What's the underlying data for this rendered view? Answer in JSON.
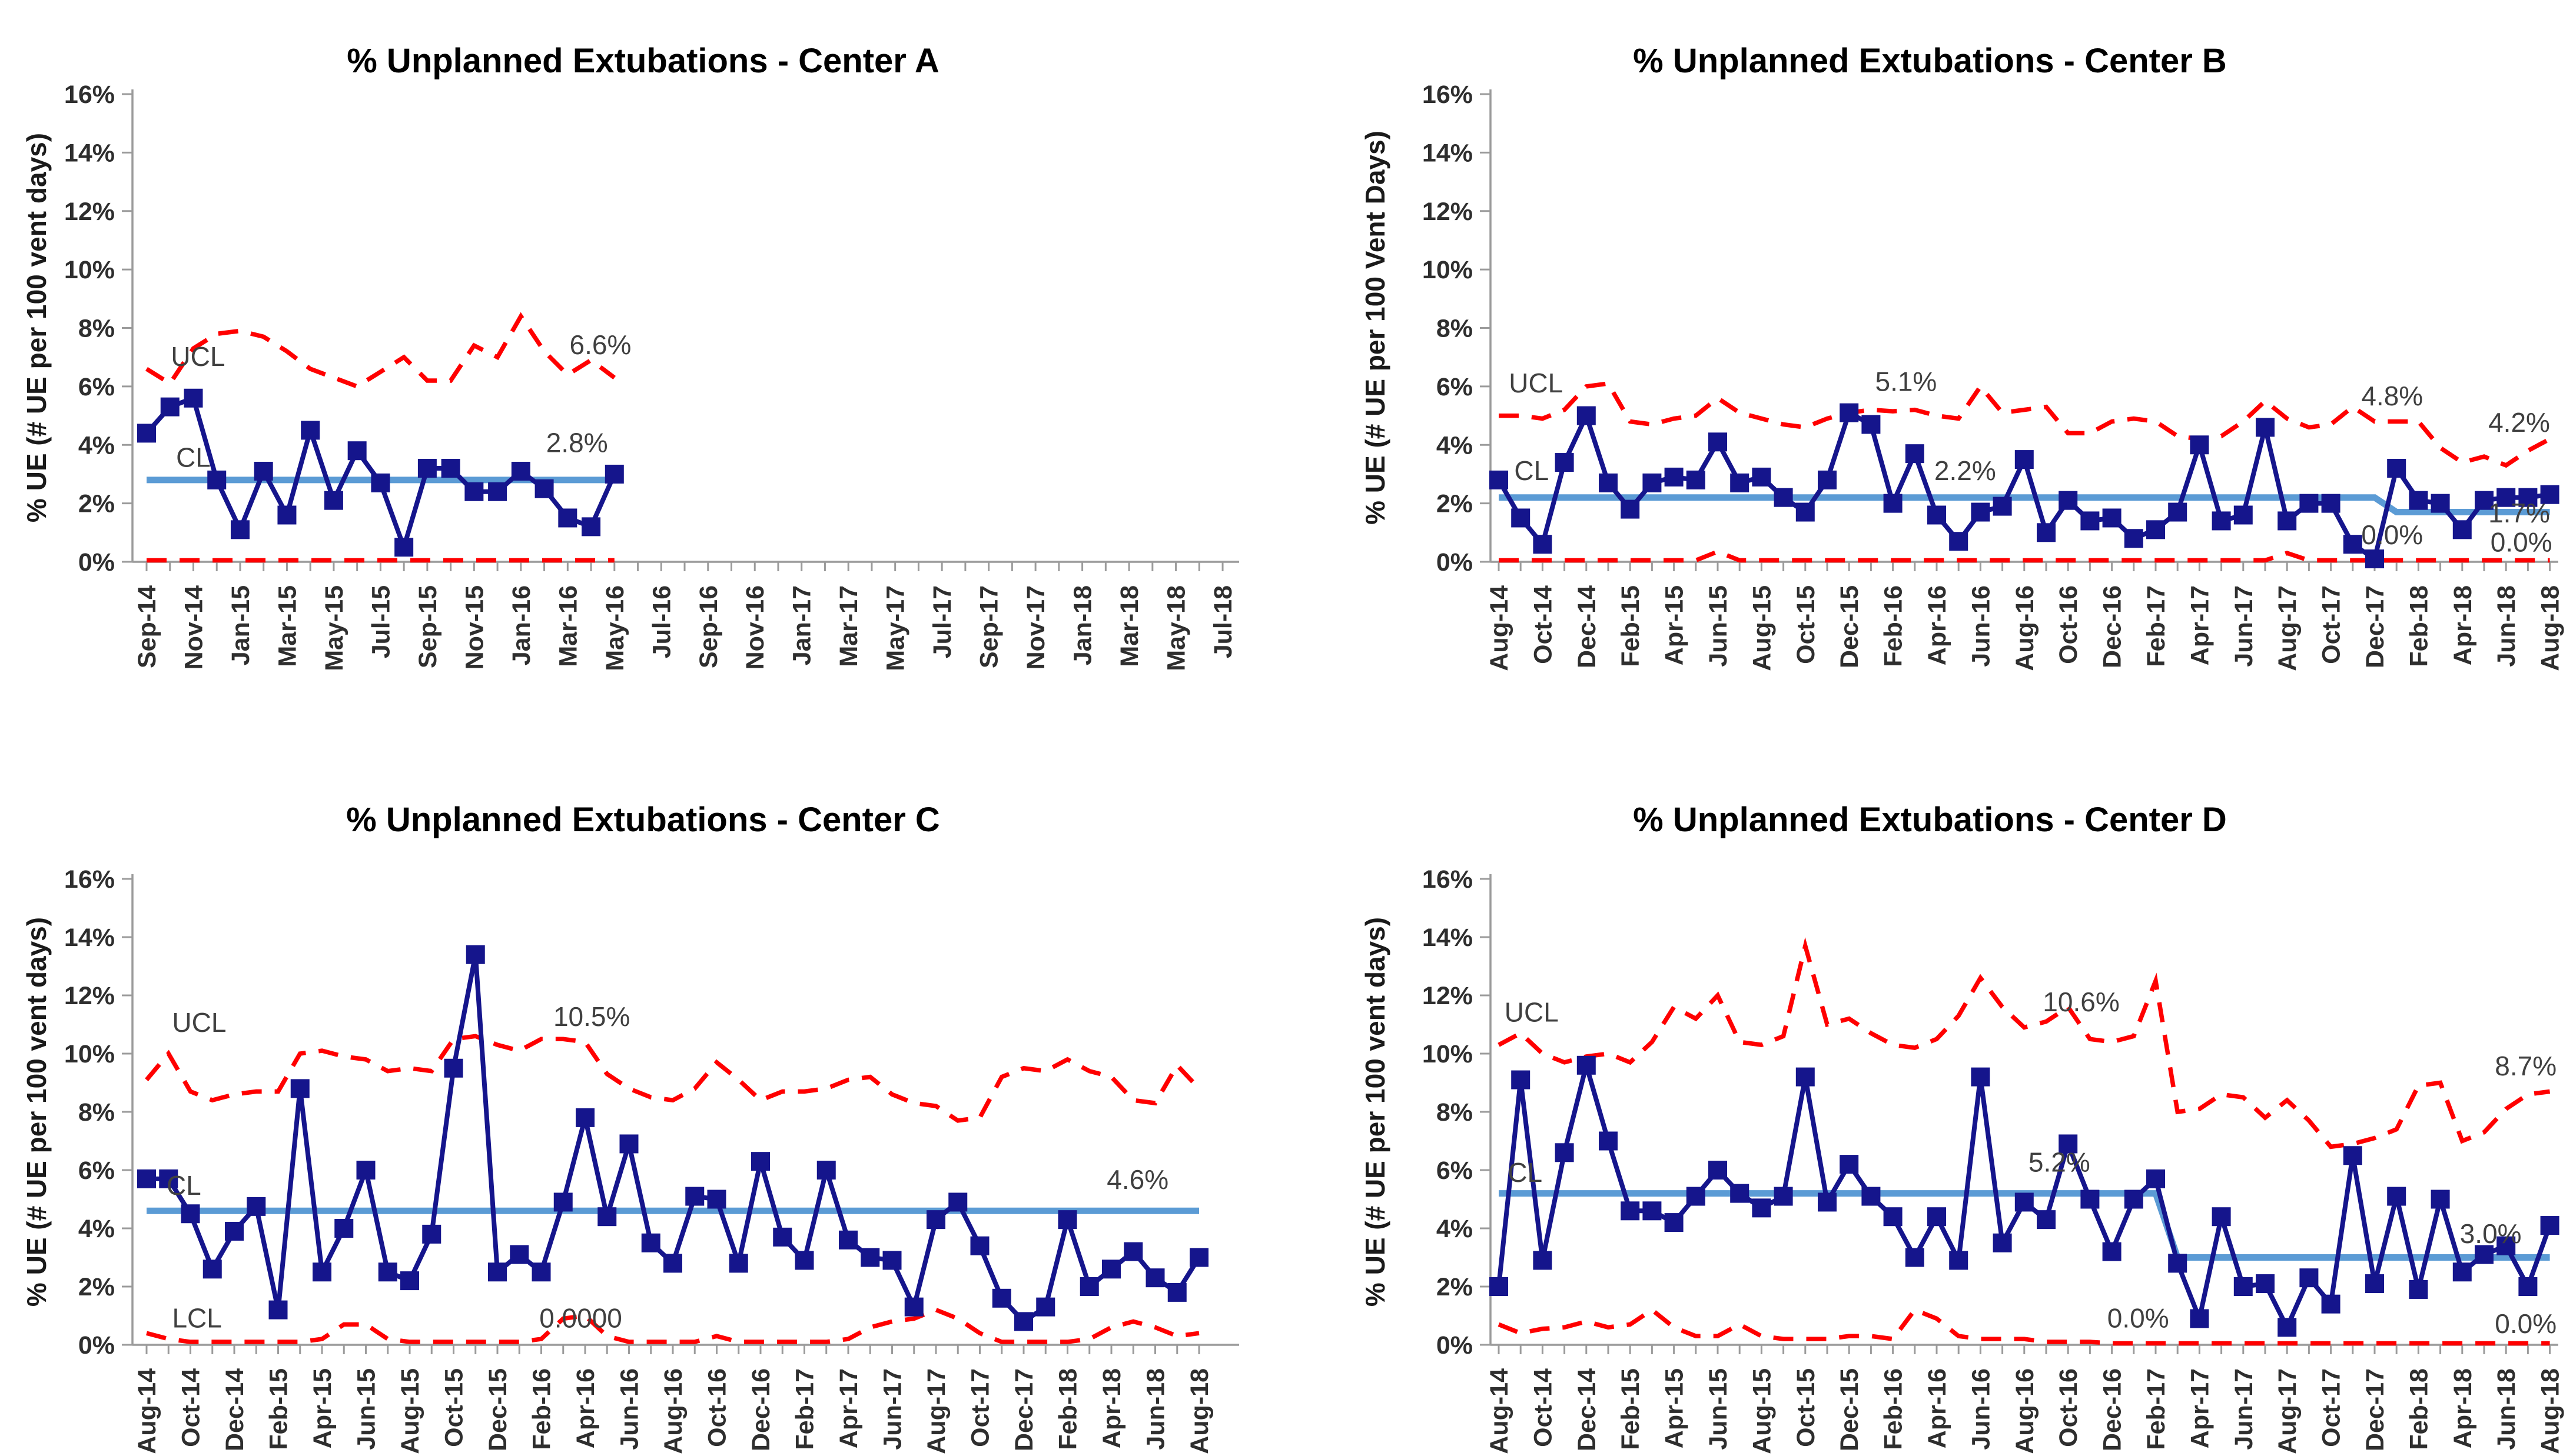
{
  "page": {
    "background": "#ffffff"
  },
  "colors": {
    "series": "#15158c",
    "center_line": "#5B9BD5",
    "control_limit": "#FF0000",
    "axis": "#9b9b9b",
    "tick_text": "#2e2e2e",
    "annotation_text": "#404040",
    "title_text": "#000000"
  },
  "chart_data": [
    {
      "id": "center-a",
      "type": "line",
      "title": "% Unplanned Extubations - Center A",
      "y_axis_label": "% UE (# UE per 100 vent days)",
      "ylim": [
        0,
        16
      ],
      "y_tick_labels": [
        "0%",
        "2%",
        "4%",
        "6%",
        "8%",
        "10%",
        "12%",
        "14%",
        "16%"
      ],
      "x_tick_labels": [
        "Sep-14",
        "Nov-14",
        "Jan-15",
        "Mar-15",
        "May-15",
        "Jul-15",
        "Sep-15",
        "Nov-15",
        "Jan-16",
        "Mar-16",
        "May-16",
        "Jul-16",
        "Sep-16",
        "Nov-16",
        "Jan-17",
        "Mar-17",
        "May-17",
        "Jul-17",
        "Sep-17",
        "Nov-17",
        "Jan-18",
        "Mar-18",
        "May-18",
        "Jul-18"
      ],
      "axis_months": 47,
      "values": [
        4.4,
        5.3,
        5.6,
        2.8,
        1.1,
        3.1,
        1.6,
        4.5,
        2.1,
        3.8,
        2.7,
        0.5,
        3.2,
        3.2,
        2.4,
        2.4,
        3.1,
        2.5,
        1.5,
        1.2,
        3.0
      ],
      "ucl": [
        6.6,
        6.1,
        7.3,
        7.8,
        7.9,
        7.7,
        7.2,
        6.6,
        6.3,
        6.0,
        6.5,
        7.0,
        6.2,
        6.2,
        7.4,
        7.0,
        8.4,
        7.2,
        6.4,
        6.9,
        6.3
      ],
      "lcl": [
        0.05,
        0.05,
        0.05,
        0.05,
        0.05,
        0.05,
        0.05,
        0.05,
        0.05,
        0.05,
        0.05,
        0.05,
        0.05,
        0.05,
        0.05,
        0.05,
        0.05,
        0.05,
        0.05,
        0.05,
        0.05
      ],
      "cl_segments": [
        {
          "start": 0,
          "end": 20,
          "value": 2.8
        }
      ],
      "annotations": [
        {
          "text": "UCL",
          "m": 2.2,
          "v": 6.7
        },
        {
          "text": "CL",
          "m": 2.0,
          "v": 3.25
        },
        {
          "text": "6.6%",
          "m": 19.4,
          "v": 7.1
        },
        {
          "text": "2.8%",
          "m": 18.4,
          "v": 3.75
        }
      ]
    },
    {
      "id": "center-b",
      "type": "line",
      "title": "% Unplanned Extubations - Center B",
      "y_axis_label": "% UE (# UE per 100 Vent Days)",
      "ylim": [
        0,
        16
      ],
      "y_tick_labels": [
        "0%",
        "2%",
        "4%",
        "6%",
        "8%",
        "10%",
        "12%",
        "14%",
        "16%"
      ],
      "x_tick_labels": [
        "Aug-14",
        "Oct-14",
        "Dec-14",
        "Feb-15",
        "Apr-15",
        "Jun-15",
        "Aug-15",
        "Oct-15",
        "Dec-15",
        "Feb-16",
        "Apr-16",
        "Jun-16",
        "Aug-16",
        "Oct-16",
        "Dec-16",
        "Feb-17",
        "Apr-17",
        "Jun-17",
        "Aug-17",
        "Oct-17",
        "Dec-17",
        "Feb-18",
        "Apr-18",
        "Jun-18",
        "Aug-18"
      ],
      "axis_months": 49,
      "values": [
        2.8,
        1.5,
        0.6,
        3.4,
        5.0,
        2.7,
        1.8,
        2.7,
        2.9,
        2.8,
        4.1,
        2.7,
        2.9,
        2.2,
        1.7,
        2.8,
        5.1,
        4.7,
        2.0,
        3.7,
        1.6,
        0.7,
        1.7,
        1.9,
        3.5,
        1.0,
        2.1,
        1.4,
        1.5,
        0.8,
        1.1,
        1.7,
        4.0,
        1.4,
        1.6,
        4.6,
        1.4,
        2.0,
        2.0,
        0.6,
        0.1,
        3.2,
        2.1,
        2.0,
        1.1,
        2.1,
        2.2,
        2.2,
        2.3
      ],
      "ucl": [
        5.0,
        5.0,
        4.9,
        5.2,
        6.0,
        6.1,
        4.8,
        4.7,
        4.9,
        5.0,
        5.6,
        5.1,
        4.9,
        4.7,
        4.6,
        4.9,
        5.1,
        5.2,
        5.15,
        5.2,
        5.0,
        4.9,
        6.0,
        5.1,
        5.2,
        5.3,
        4.4,
        4.4,
        4.8,
        4.9,
        4.8,
        4.3,
        4.2,
        4.3,
        4.8,
        5.5,
        4.9,
        4.6,
        4.7,
        5.3,
        4.8,
        4.8,
        4.8,
        3.9,
        3.4,
        3.6,
        3.3,
        3.8,
        4.2
      ],
      "lcl": [
        0.05,
        0.05,
        0.05,
        0.05,
        0.05,
        0.05,
        0.05,
        0.05,
        0.05,
        0.05,
        0.35,
        0.05,
        0.05,
        0.05,
        0.05,
        0.05,
        0.05,
        0.05,
        0.05,
        0.05,
        0.05,
        0.05,
        0.05,
        0.05,
        0.05,
        0.05,
        0.05,
        0.05,
        0.05,
        0.05,
        0.05,
        0.05,
        0.05,
        0.05,
        0.05,
        0.05,
        0.3,
        0.05,
        0.05,
        0.05,
        0.05,
        0.05,
        0.05,
        0.05,
        0.05,
        0.05,
        0.05,
        0.05,
        0.05
      ],
      "cl_segments": [
        {
          "start": 0,
          "end": 40,
          "value": 2.2
        },
        {
          "start": 41,
          "end": 48,
          "value": 1.7
        }
      ],
      "annotations": [
        {
          "text": "UCL",
          "m": 1.7,
          "v": 5.8
        },
        {
          "text": "CL",
          "m": 1.5,
          "v": 2.8
        },
        {
          "text": "5.1%",
          "m": 18.6,
          "v": 5.85
        },
        {
          "text": "2.2%",
          "m": 21.3,
          "v": 2.8
        },
        {
          "text": "4.8%",
          "m": 40.8,
          "v": 5.35
        },
        {
          "text": "4.2%",
          "m": 46.6,
          "v": 4.45
        },
        {
          "text": "1.7%",
          "m": 46.6,
          "v": 1.35
        },
        {
          "text": "0.0%",
          "m": 40.8,
          "v": 0.6
        },
        {
          "text": "0.0%",
          "m": 46.7,
          "v": 0.35
        }
      ]
    },
    {
      "id": "center-c",
      "type": "line",
      "title": "% Unplanned Extubations - Center C",
      "y_axis_label": "% UE (# UE per 100 vent days)",
      "ylim": [
        0,
        16
      ],
      "y_tick_labels": [
        "0%",
        "2%",
        "4%",
        "6%",
        "8%",
        "10%",
        "12%",
        "14%",
        "16%"
      ],
      "x_tick_labels": [
        "Aug-14",
        "Oct-14",
        "Dec-14",
        "Feb-15",
        "Apr-15",
        "Jun-15",
        "Aug-15",
        "Oct-15",
        "Dec-15",
        "Feb-16",
        "Apr-16",
        "Jun-16",
        "Aug-16",
        "Oct-16",
        "Dec-16",
        "Feb-17",
        "Apr-17",
        "Jun-17",
        "Aug-17",
        "Oct-17",
        "Dec-17",
        "Feb-18",
        "Apr-18",
        "Jun-18",
        "Aug-18"
      ],
      "axis_months": 49,
      "values": [
        5.7,
        5.7,
        4.5,
        2.6,
        3.9,
        4.75,
        1.2,
        8.8,
        2.5,
        4.0,
        6.0,
        2.5,
        2.2,
        3.8,
        9.5,
        13.4,
        2.5,
        3.1,
        2.5,
        4.9,
        7.8,
        4.4,
        6.9,
        3.5,
        2.8,
        5.1,
        5.0,
        2.8,
        6.3,
        3.7,
        2.9,
        6.0,
        3.6,
        3.0,
        2.9,
        1.3,
        4.3,
        4.9,
        3.4,
        1.6,
        0.8,
        1.3,
        4.3,
        2.0,
        2.6,
        3.2,
        2.3,
        1.8,
        3.0
      ],
      "ucl": [
        9.1,
        10.0,
        8.7,
        8.4,
        8.6,
        8.7,
        8.7,
        10.0,
        10.1,
        9.9,
        9.8,
        9.4,
        9.5,
        9.4,
        10.5,
        10.6,
        10.3,
        10.1,
        10.5,
        10.5,
        10.4,
        9.3,
        8.8,
        8.5,
        8.4,
        8.8,
        9.7,
        9.1,
        8.4,
        8.7,
        8.7,
        8.8,
        9.1,
        9.2,
        8.6,
        8.3,
        8.2,
        7.7,
        7.8,
        9.2,
        9.5,
        9.4,
        9.8,
        9.4,
        9.2,
        8.4,
        8.3,
        9.6,
        8.8
      ],
      "lcl": [
        0.4,
        0.2,
        0.1,
        0.1,
        0.1,
        0.1,
        0.1,
        0.1,
        0.2,
        0.7,
        0.7,
        0.2,
        0.1,
        0.1,
        0.1,
        0.1,
        0.1,
        0.1,
        0.2,
        0.9,
        1.0,
        0.3,
        0.1,
        0.1,
        0.1,
        0.1,
        0.3,
        0.1,
        0.1,
        0.1,
        0.1,
        0.1,
        0.2,
        0.6,
        0.8,
        0.9,
        1.2,
        0.9,
        0.4,
        0.1,
        0.1,
        0.1,
        0.1,
        0.2,
        0.6,
        0.8,
        0.6,
        0.3,
        0.4
      ],
      "cl_segments": [
        {
          "start": 0,
          "end": 48,
          "value": 4.6
        }
      ],
      "annotations": [
        {
          "text": "UCL",
          "m": 2.4,
          "v": 10.75
        },
        {
          "text": "CL",
          "m": 1.7,
          "v": 5.15
        },
        {
          "text": "LCL",
          "m": 2.3,
          "v": 0.6
        },
        {
          "text": "10.5%",
          "m": 20.3,
          "v": 10.95
        },
        {
          "text": "4.6%",
          "m": 45.2,
          "v": 5.35
        },
        {
          "text": "0.0000",
          "m": 19.8,
          "v": 0.6
        }
      ]
    },
    {
      "id": "center-d",
      "type": "line",
      "title": "% Unplanned Extubations - Center D",
      "y_axis_label": "% UE (# UE per 100 vent days)",
      "ylim": [
        0,
        16
      ],
      "y_tick_labels": [
        "0%",
        "2%",
        "4%",
        "6%",
        "8%",
        "10%",
        "12%",
        "14%",
        "16%"
      ],
      "x_tick_labels": [
        "Aug-14",
        "Oct-14",
        "Dec-14",
        "Feb-15",
        "Apr-15",
        "Jun-15",
        "Aug-15",
        "Oct-15",
        "Dec-15",
        "Feb-16",
        "Apr-16",
        "Jun-16",
        "Aug-16",
        "Oct-16",
        "Dec-16",
        "Feb-17",
        "Apr-17",
        "Jun-17",
        "Aug-17",
        "Oct-17",
        "Dec-17",
        "Feb-18",
        "Apr-18",
        "Jun-18",
        "Aug-18"
      ],
      "axis_months": 49,
      "values": [
        2.0,
        9.1,
        2.9,
        6.6,
        9.6,
        7.0,
        4.6,
        4.6,
        4.2,
        5.1,
        6.0,
        5.2,
        4.7,
        5.1,
        9.2,
        4.9,
        6.2,
        5.1,
        4.4,
        3.0,
        4.4,
        2.9,
        9.2,
        3.5,
        4.9,
        4.3,
        6.9,
        5.0,
        3.2,
        5.0,
        5.7,
        2.8,
        0.9,
        4.4,
        2.0,
        2.1,
        0.6,
        2.3,
        1.4,
        6.5,
        2.1,
        5.1,
        1.9,
        5.0,
        2.5,
        3.1,
        3.4,
        2.0,
        4.1
      ],
      "ucl": [
        10.3,
        10.7,
        10.0,
        9.7,
        9.9,
        10.0,
        9.7,
        10.4,
        11.6,
        11.2,
        12.0,
        10.4,
        10.3,
        10.6,
        13.7,
        11.0,
        11.2,
        10.7,
        10.3,
        10.2,
        10.5,
        11.3,
        12.6,
        11.6,
        10.9,
        11.1,
        11.6,
        10.5,
        10.4,
        10.6,
        12.5,
        8.0,
        8.1,
        8.6,
        8.5,
        7.8,
        8.4,
        7.7,
        6.8,
        6.9,
        7.1,
        7.4,
        8.9,
        9.0,
        7.0,
        7.3,
        8.1,
        8.6,
        8.7
      ],
      "lcl": [
        0.7,
        0.4,
        0.55,
        0.6,
        0.8,
        0.6,
        0.7,
        1.2,
        0.6,
        0.3,
        0.3,
        0.7,
        0.3,
        0.2,
        0.2,
        0.2,
        0.3,
        0.3,
        0.2,
        1.2,
        0.9,
        0.3,
        0.2,
        0.2,
        0.2,
        0.1,
        0.1,
        0.1,
        0.05,
        0.05,
        0.05,
        0.05,
        0.05,
        0.05,
        0.05,
        0.05,
        0.05,
        0.05,
        0.05,
        0.05,
        0.05,
        0.05,
        0.05,
        0.05,
        0.05,
        0.05,
        0.05,
        0.05,
        0.05
      ],
      "cl_segments": [
        {
          "start": 0,
          "end": 30,
          "value": 5.2
        },
        {
          "start": 31,
          "end": 48,
          "value": 3.0
        }
      ],
      "annotations": [
        {
          "text": "UCL",
          "m": 1.5,
          "v": 11.1
        },
        {
          "text": "CL",
          "m": 1.2,
          "v": 5.6
        },
        {
          "text": "10.6%",
          "m": 26.6,
          "v": 11.45
        },
        {
          "text": "5.2%",
          "m": 25.6,
          "v": 5.95
        },
        {
          "text": "8.7%",
          "m": 46.9,
          "v": 9.25
        },
        {
          "text": "3.0%",
          "m": 45.3,
          "v": 3.5
        },
        {
          "text": "0.0%",
          "m": 29.2,
          "v": 0.6
        },
        {
          "text": "0.0%",
          "m": 46.9,
          "v": 0.4
        }
      ]
    }
  ]
}
